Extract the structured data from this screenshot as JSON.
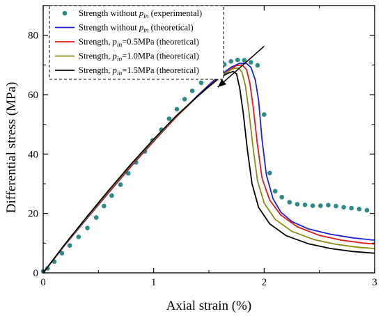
{
  "chart_data": {
    "type": "line",
    "xlabel": "Axial strain (%)",
    "ylabel": "Differential stress (MPa)",
    "xlim": [
      0,
      3
    ],
    "ylim": [
      0,
      90
    ],
    "x_ticks": [
      0,
      1,
      2,
      3
    ],
    "y_ticks": [
      0,
      20,
      40,
      60,
      80
    ],
    "grid": false,
    "legend_placement": "top-left",
    "series": [
      {
        "name_parts": [
          "Strength without ",
          "p",
          "in",
          " (experimental)"
        ],
        "kind": "scatter",
        "color": "#2a8a88",
        "x": [
          0.0,
          0.04,
          0.1,
          0.17,
          0.24,
          0.32,
          0.4,
          0.48,
          0.55,
          0.62,
          0.7,
          0.77,
          0.84,
          0.92,
          0.99,
          1.07,
          1.14,
          1.21,
          1.28,
          1.35,
          1.43,
          1.5,
          1.57,
          1.64,
          1.7,
          1.76,
          1.82,
          1.88,
          1.94,
          2.0,
          2.05,
          2.1,
          2.16,
          2.23,
          2.3,
          2.37,
          2.44,
          2.51,
          2.58,
          2.65,
          2.72,
          2.79,
          2.86,
          2.93
        ],
        "y": [
          0.5,
          1.5,
          3.8,
          6.6,
          9.2,
          12.1,
          15.1,
          18.6,
          22.5,
          26.0,
          29.7,
          33.5,
          37.2,
          40.9,
          44.6,
          48.2,
          51.9,
          55.1,
          58.5,
          61.3,
          64.0,
          66.6,
          68.7,
          70.2,
          71.2,
          71.7,
          71.6,
          70.9,
          69.9,
          53.3,
          33.6,
          27.5,
          25.5,
          23.8,
          23.1,
          22.9,
          22.6,
          22.6,
          22.8,
          22.5,
          22.1,
          21.8,
          21.5,
          21.1
        ]
      },
      {
        "name_parts": [
          "Strength without ",
          "p",
          "in",
          " (theoretical)"
        ],
        "kind": "line",
        "color": "#1f1fd6",
        "x": [
          0,
          0.2,
          0.4,
          0.6,
          0.8,
          1.0,
          1.2,
          1.4,
          1.55,
          1.7,
          1.78,
          1.84,
          1.88,
          1.92,
          1.95,
          1.98,
          2.02,
          2.08,
          2.15,
          2.25,
          2.4,
          2.6,
          2.8,
          3.0
        ],
        "y": [
          0,
          9.5,
          18.5,
          27.3,
          36.0,
          44.3,
          52.3,
          59.8,
          65.0,
          69.2,
          70.6,
          70.5,
          69.2,
          65.0,
          58.0,
          45.0,
          33.0,
          25.0,
          20.5,
          17.3,
          14.8,
          13.0,
          11.8,
          11.0
        ]
      },
      {
        "name_parts": [
          "Strength, ",
          "p",
          "in",
          "=0.5MPa (theoretical)"
        ],
        "kind": "line",
        "color": "#e01818",
        "x": [
          0,
          0.2,
          0.4,
          0.6,
          0.8,
          1.0,
          1.2,
          1.4,
          1.55,
          1.68,
          1.75,
          1.8,
          1.84,
          1.87,
          1.9,
          1.94,
          1.98,
          2.05,
          2.15,
          2.3,
          2.5,
          2.7,
          2.9,
          3.0
        ],
        "y": [
          0,
          9.6,
          18.7,
          27.5,
          36.2,
          44.5,
          52.3,
          59.5,
          64.5,
          68.2,
          69.8,
          70.0,
          68.5,
          64.0,
          56.0,
          43.0,
          32.0,
          24.5,
          19.5,
          15.5,
          12.6,
          11.0,
          10.0,
          9.7
        ]
      },
      {
        "name_parts": [
          "Strength, ",
          "p",
          "in",
          "=1.0MPa (theoretical)"
        ],
        "kind": "line",
        "color": "#8a8a10",
        "x": [
          0,
          0.2,
          0.4,
          0.6,
          0.8,
          1.0,
          1.2,
          1.4,
          1.55,
          1.65,
          1.72,
          1.77,
          1.8,
          1.83,
          1.86,
          1.9,
          1.94,
          2.0,
          2.1,
          2.25,
          2.45,
          2.65,
          2.85,
          3.0
        ],
        "y": [
          0,
          9.7,
          18.9,
          27.8,
          36.5,
          44.7,
          52.5,
          59.5,
          64.2,
          67.3,
          68.8,
          69.0,
          67.5,
          63.0,
          55.0,
          42.0,
          31.0,
          23.5,
          18.0,
          14.0,
          11.2,
          9.6,
          8.6,
          8.2
        ]
      },
      {
        "name_parts": [
          "Strength, ",
          "p",
          "in",
          "=1.5MPa (theoretical)"
        ],
        "kind": "line",
        "color": "#000000",
        "x": [
          0,
          0.2,
          0.4,
          0.6,
          0.8,
          1.0,
          1.2,
          1.4,
          1.5,
          1.6,
          1.67,
          1.72,
          1.75,
          1.78,
          1.81,
          1.85,
          1.89,
          1.95,
          2.05,
          2.2,
          2.4,
          2.6,
          2.8,
          3.0
        ],
        "y": [
          0,
          9.8,
          19.1,
          28.1,
          36.8,
          45.0,
          52.7,
          59.5,
          62.8,
          65.8,
          67.2,
          67.8,
          67.0,
          62.0,
          54.0,
          41.0,
          30.0,
          22.0,
          16.5,
          12.5,
          9.8,
          8.2,
          7.2,
          6.6
        ]
      }
    ],
    "annotation": {
      "kind": "arrow",
      "from": [
        2.0,
        76.3
      ],
      "to": [
        1.58,
        62.5
      ]
    }
  }
}
